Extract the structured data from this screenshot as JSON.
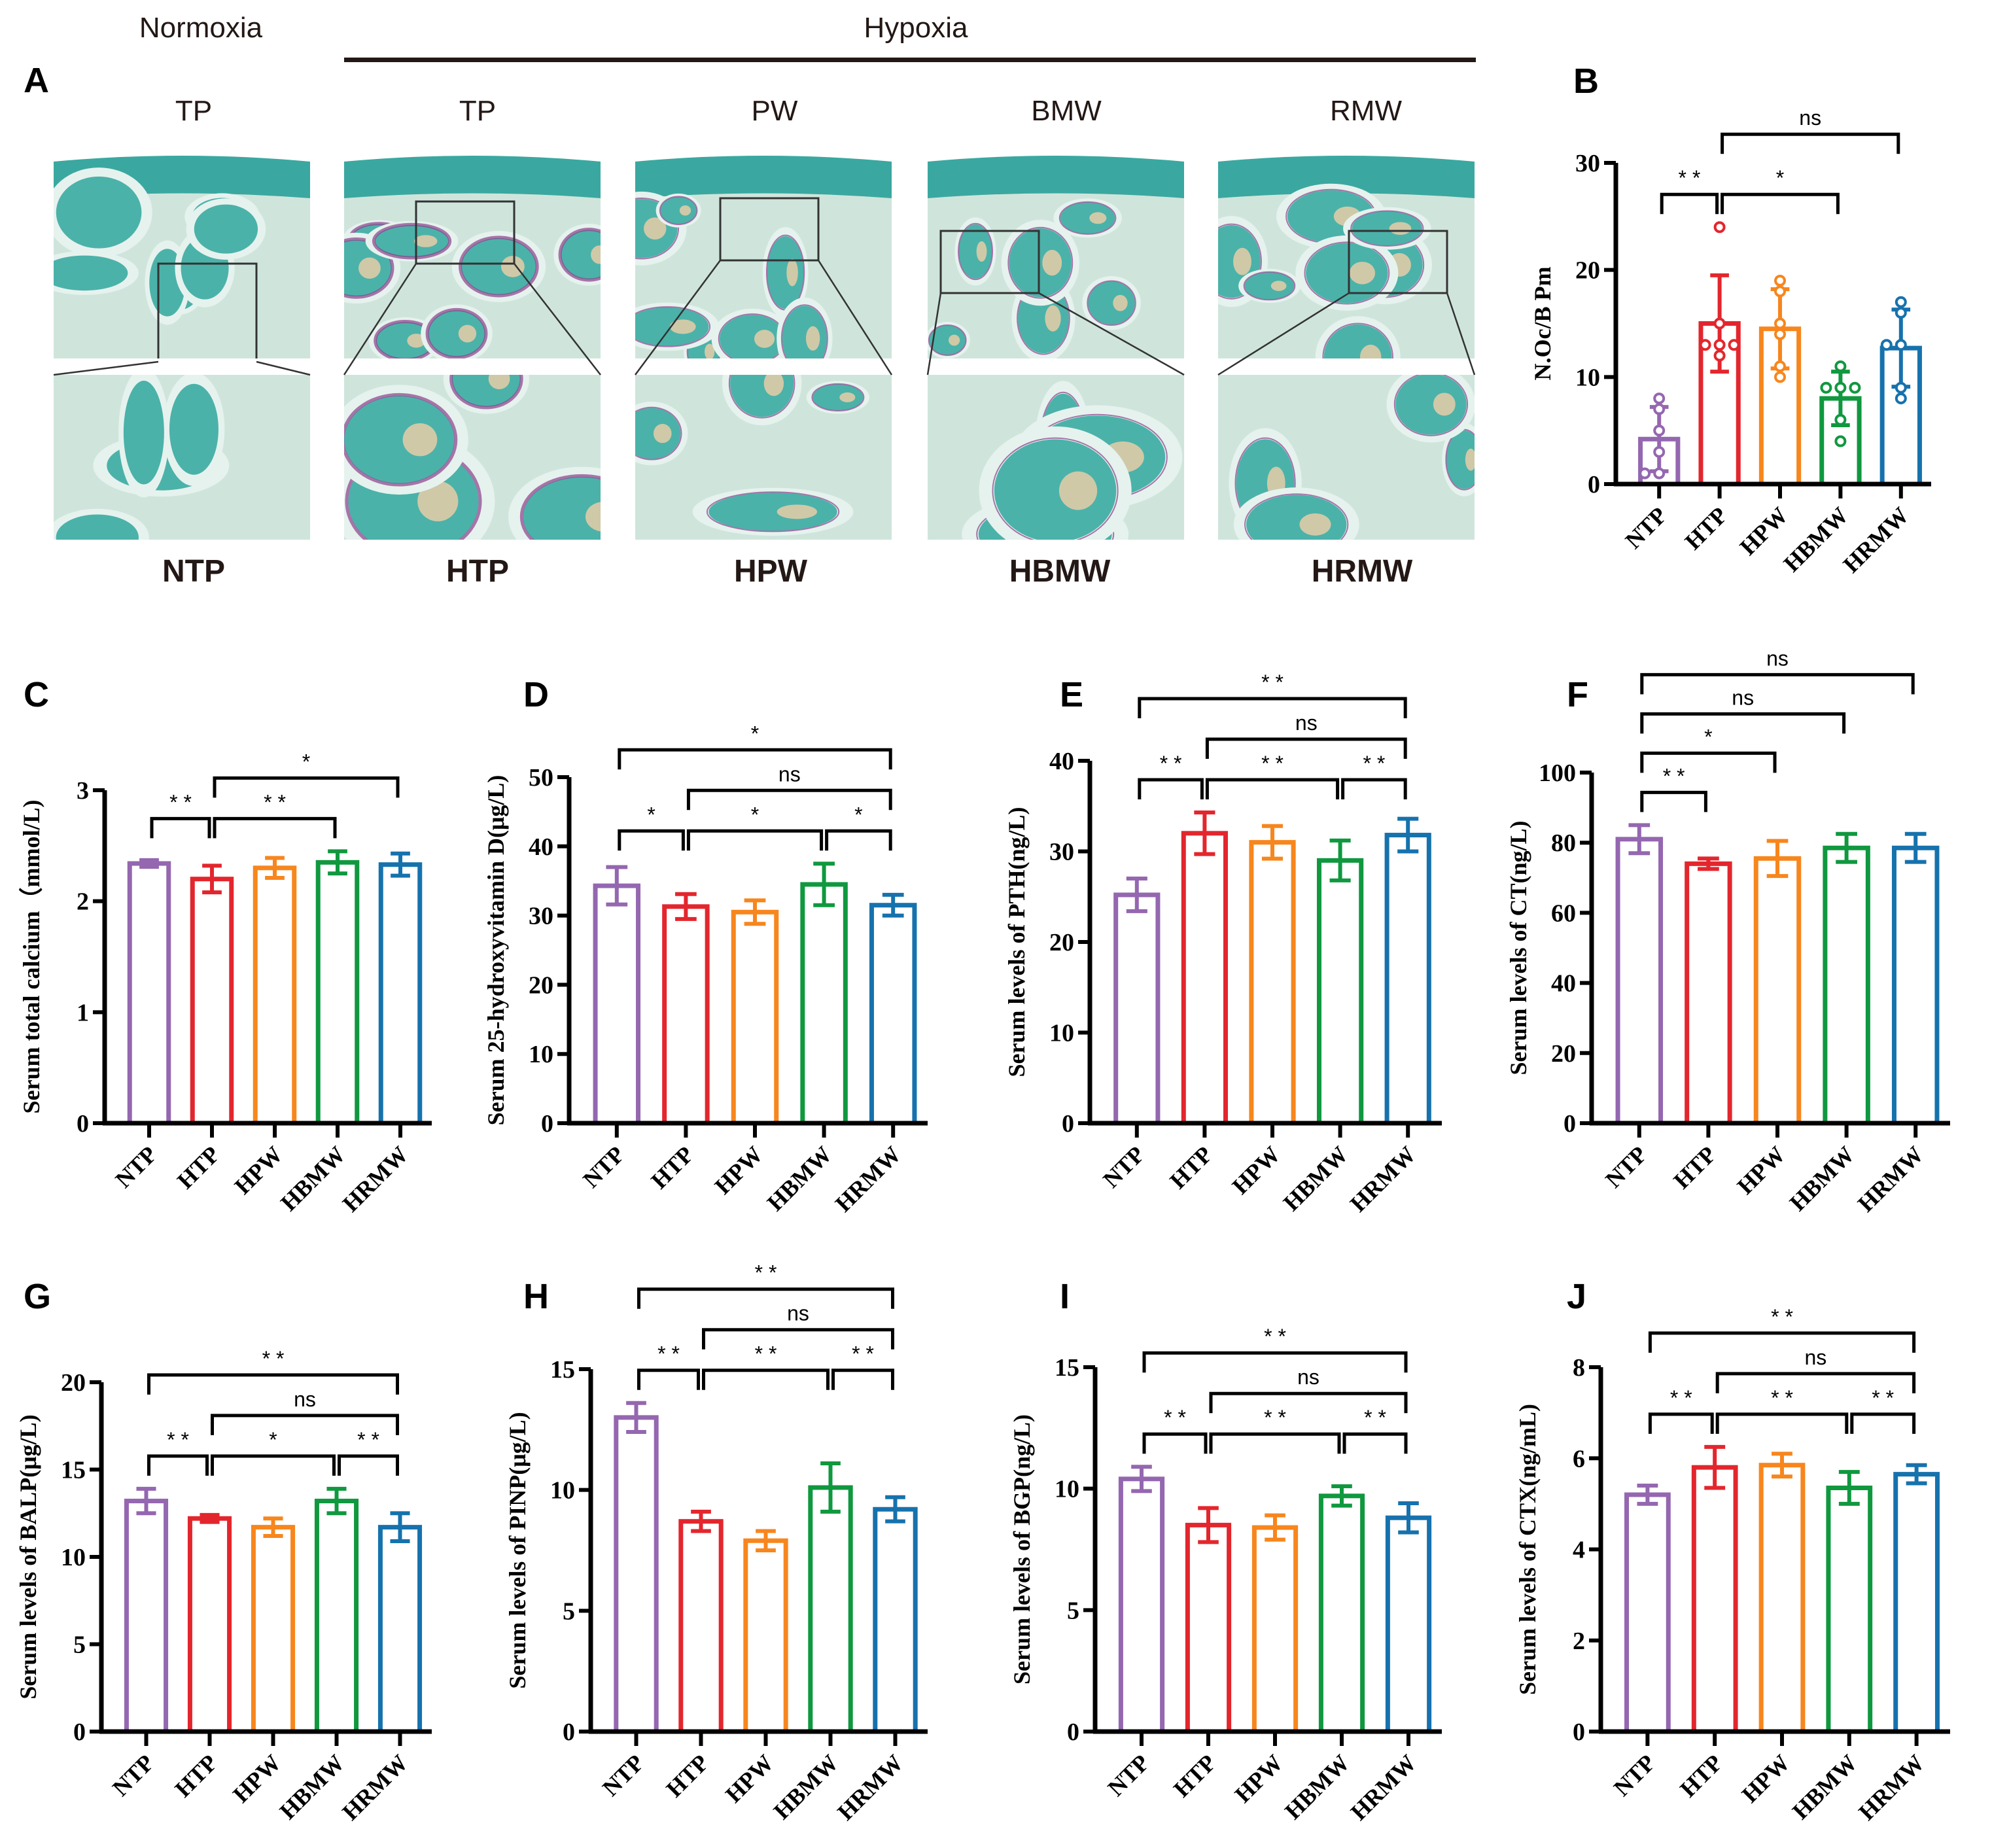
{
  "colors": {
    "NTP": "#9467b0",
    "HTP": "#e3262d",
    "HPW": "#f7861d",
    "HBMW": "#10983f",
    "HRMW": "#1672ad",
    "ink": "#000000"
  },
  "panel_a": {
    "letter": "A",
    "condition_labels": {
      "normoxia": "Normoxia",
      "hypoxia": "Hypoxia"
    },
    "column_headers": [
      "TP",
      "TP",
      "PW",
      "BMW",
      "RMW"
    ],
    "group_labels": [
      "NTP",
      "HTP",
      "HPW",
      "HBMW",
      "HRMW"
    ],
    "image_kind": "histology (TRAP-stained bone sections, overview and magnified inset)"
  },
  "chart_data": [
    {
      "panel": "B",
      "type": "bar",
      "categories": [
        "NTP",
        "HTP",
        "HPW",
        "HBMW",
        "HRMW"
      ],
      "ylabel": "N.Oc/B Pm",
      "ylim": [
        0,
        30
      ],
      "yticks": [
        0,
        10,
        20,
        30
      ],
      "series": [
        {
          "values": [
            4.2,
            15.0,
            14.5,
            8.0,
            12.7
          ],
          "sd": [
            3.0,
            4.5,
            3.7,
            2.5,
            3.6
          ],
          "points": [
            [
              8,
              7,
              5,
              3,
              1,
              1
            ],
            [
              24,
              15,
              13,
              13,
              13,
              12
            ],
            [
              19,
              18,
              15,
              14,
              11,
              10
            ],
            [
              11,
              9,
              9,
              9,
              6,
              4
            ],
            [
              17,
              16,
              13,
              13,
              9,
              8
            ]
          ]
        }
      ],
      "comparisons": [
        {
          "from": "NTP",
          "to": "HTP",
          "label": "* *",
          "level": 0
        },
        {
          "from": "HTP",
          "to": "HBMW",
          "label": "*",
          "level": 0
        },
        {
          "from": "HTP",
          "to": "HRMW",
          "label": "ns",
          "level": 1
        }
      ]
    },
    {
      "panel": "C",
      "type": "bar",
      "categories": [
        "NTP",
        "HTP",
        "HPW",
        "HBMW",
        "HRMW"
      ],
      "ylabel": "Serum total calcium（mmol/L)",
      "ylim": [
        0,
        3
      ],
      "yticks": [
        0,
        1,
        2,
        3
      ],
      "series": [
        {
          "values": [
            2.34,
            2.2,
            2.3,
            2.35,
            2.33
          ],
          "sd": [
            0.03,
            0.12,
            0.09,
            0.1,
            0.1
          ]
        }
      ],
      "comparisons": [
        {
          "from": "NTP",
          "to": "HTP",
          "label": "* *",
          "level": 0
        },
        {
          "from": "HTP",
          "to": "HBMW",
          "label": "* *",
          "level": 0
        },
        {
          "from": "HTP",
          "to": "HRMW",
          "label": "*",
          "level": 1
        }
      ]
    },
    {
      "panel": "D",
      "type": "bar",
      "categories": [
        "NTP",
        "HTP",
        "HPW",
        "HBMW",
        "HRMW"
      ],
      "ylabel": "Serum 25-hydroxyvitamin D(μg/L)",
      "ylim": [
        0,
        50
      ],
      "yticks": [
        0,
        10,
        20,
        30,
        40,
        50
      ],
      "series": [
        {
          "values": [
            34.3,
            31.3,
            30.5,
            34.5,
            31.5
          ],
          "sd": [
            2.7,
            1.8,
            1.7,
            3.0,
            1.5
          ]
        }
      ],
      "comparisons": [
        {
          "from": "NTP",
          "to": "HTP",
          "label": "*",
          "level": 0
        },
        {
          "from": "HTP",
          "to": "HBMW",
          "label": "*",
          "level": 0
        },
        {
          "from": "HBMW",
          "to": "HRMW",
          "label": "*",
          "level": 0
        },
        {
          "from": "HTP",
          "to": "HRMW",
          "label": "ns",
          "level": 1
        },
        {
          "from": "NTP",
          "to": "HRMW",
          "label": "*",
          "level": 2
        }
      ]
    },
    {
      "panel": "E",
      "type": "bar",
      "categories": [
        "NTP",
        "HTP",
        "HPW",
        "HBMW",
        "HRMW"
      ],
      "ylabel": "Serum levels of PTH(ng/L)",
      "ylim": [
        0,
        40
      ],
      "yticks": [
        0,
        10,
        20,
        30,
        40
      ],
      "series": [
        {
          "values": [
            25.2,
            32.0,
            31.0,
            29.0,
            31.8
          ],
          "sd": [
            1.8,
            2.3,
            1.8,
            2.2,
            1.8
          ]
        }
      ],
      "comparisons": [
        {
          "from": "NTP",
          "to": "HTP",
          "label": "* *",
          "level": 0
        },
        {
          "from": "HTP",
          "to": "HBMW",
          "label": "* *",
          "level": 0
        },
        {
          "from": "HBMW",
          "to": "HRMW",
          "label": "* *",
          "level": 0
        },
        {
          "from": "HTP",
          "to": "HRMW",
          "label": "ns",
          "level": 1
        },
        {
          "from": "NTP",
          "to": "HRMW",
          "label": "* *",
          "level": 2
        }
      ]
    },
    {
      "panel": "F",
      "type": "bar",
      "categories": [
        "NTP",
        "HTP",
        "HPW",
        "HBMW",
        "HRMW"
      ],
      "ylabel": "Serum levels of CT(ng/L)",
      "ylim": [
        0,
        100
      ],
      "yticks": [
        0,
        20,
        40,
        60,
        80,
        100
      ],
      "series": [
        {
          "values": [
            81,
            74,
            75.5,
            78.5,
            78.5
          ],
          "sd": [
            4,
            1.5,
            5,
            4,
            4
          ]
        }
      ],
      "comparisons": [
        {
          "from": "NTP",
          "to": "HTP",
          "label": "* *",
          "level": 0
        },
        {
          "from": "NTP",
          "to": "HPW",
          "label": "*",
          "level": 1
        },
        {
          "from": "NTP",
          "to": "HBMW",
          "label": "ns",
          "level": 2
        },
        {
          "from": "NTP",
          "to": "HRMW",
          "label": "ns",
          "level": 3
        }
      ]
    },
    {
      "panel": "G",
      "type": "bar",
      "categories": [
        "NTP",
        "HTP",
        "HPW",
        "HBMW",
        "HRMW"
      ],
      "ylabel": "Serum levels of BALP(μg/L)",
      "ylim": [
        0,
        20
      ],
      "yticks": [
        0,
        5,
        10,
        15,
        20
      ],
      "series": [
        {
          "values": [
            13.2,
            12.2,
            11.7,
            13.2,
            11.7
          ],
          "sd": [
            0.7,
            0.2,
            0.5,
            0.7,
            0.8
          ]
        }
      ],
      "comparisons": [
        {
          "from": "NTP",
          "to": "HTP",
          "label": "* *",
          "level": 0
        },
        {
          "from": "HTP",
          "to": "HBMW",
          "label": "*",
          "level": 0
        },
        {
          "from": "HBMW",
          "to": "HRMW",
          "label": "* *",
          "level": 0
        },
        {
          "from": "HTP",
          "to": "HRMW",
          "label": "ns",
          "level": 1
        },
        {
          "from": "NTP",
          "to": "HRMW",
          "label": "* *",
          "level": 2
        }
      ]
    },
    {
      "panel": "H",
      "type": "bar",
      "categories": [
        "NTP",
        "HTP",
        "HPW",
        "HBMW",
        "HRMW"
      ],
      "ylabel": "Serum levels of PINP(μg/L)",
      "ylim": [
        0,
        15
      ],
      "yticks": [
        0,
        5,
        10,
        15
      ],
      "series": [
        {
          "values": [
            13.0,
            8.7,
            7.9,
            10.1,
            9.2
          ],
          "sd": [
            0.6,
            0.4,
            0.4,
            1.0,
            0.5
          ]
        }
      ],
      "comparisons": [
        {
          "from": "NTP",
          "to": "HTP",
          "label": "* *",
          "level": 0
        },
        {
          "from": "HTP",
          "to": "HBMW",
          "label": "* *",
          "level": 0
        },
        {
          "from": "HBMW",
          "to": "HRMW",
          "label": "* *",
          "level": 0
        },
        {
          "from": "HTP",
          "to": "HRMW",
          "label": "ns",
          "level": 1
        },
        {
          "from": "NTP",
          "to": "HRMW",
          "label": "* *",
          "level": 2
        }
      ]
    },
    {
      "panel": "I",
      "type": "bar",
      "categories": [
        "NTP",
        "HTP",
        "HPW",
        "HBMW",
        "HRMW"
      ],
      "ylabel": "Serum levels of BGP(ng/L)",
      "ylim": [
        0,
        15
      ],
      "yticks": [
        0,
        5,
        10,
        15
      ],
      "series": [
        {
          "values": [
            10.4,
            8.5,
            8.4,
            9.7,
            8.8
          ],
          "sd": [
            0.5,
            0.7,
            0.5,
            0.4,
            0.6
          ]
        }
      ],
      "comparisons": [
        {
          "from": "NTP",
          "to": "HTP",
          "label": "* *",
          "level": 0
        },
        {
          "from": "HTP",
          "to": "HBMW",
          "label": "* *",
          "level": 0
        },
        {
          "from": "HBMW",
          "to": "HRMW",
          "label": "* *",
          "level": 0
        },
        {
          "from": "HTP",
          "to": "HRMW",
          "label": "ns",
          "level": 1
        },
        {
          "from": "NTP",
          "to": "HRMW",
          "label": "* *",
          "level": 2
        }
      ]
    },
    {
      "panel": "J",
      "type": "bar",
      "categories": [
        "NTP",
        "HTP",
        "HPW",
        "HBMW",
        "HRMW"
      ],
      "ylabel": "Serum levels of CTX(ng/mL)",
      "ylim": [
        0,
        8
      ],
      "yticks": [
        0,
        2,
        4,
        6,
        8
      ],
      "series": [
        {
          "values": [
            5.2,
            5.8,
            5.85,
            5.35,
            5.65
          ],
          "sd": [
            0.2,
            0.45,
            0.25,
            0.35,
            0.2
          ]
        }
      ],
      "comparisons": [
        {
          "from": "NTP",
          "to": "HTP",
          "label": "* *",
          "level": 0
        },
        {
          "from": "HTP",
          "to": "HBMW",
          "label": "* *",
          "level": 0
        },
        {
          "from": "HBMW",
          "to": "HRMW",
          "label": "* *",
          "level": 0
        },
        {
          "from": "HTP",
          "to": "HRMW",
          "label": "ns",
          "level": 1
        },
        {
          "from": "NTP",
          "to": "HRMW",
          "label": "* *",
          "level": 2
        }
      ]
    }
  ]
}
